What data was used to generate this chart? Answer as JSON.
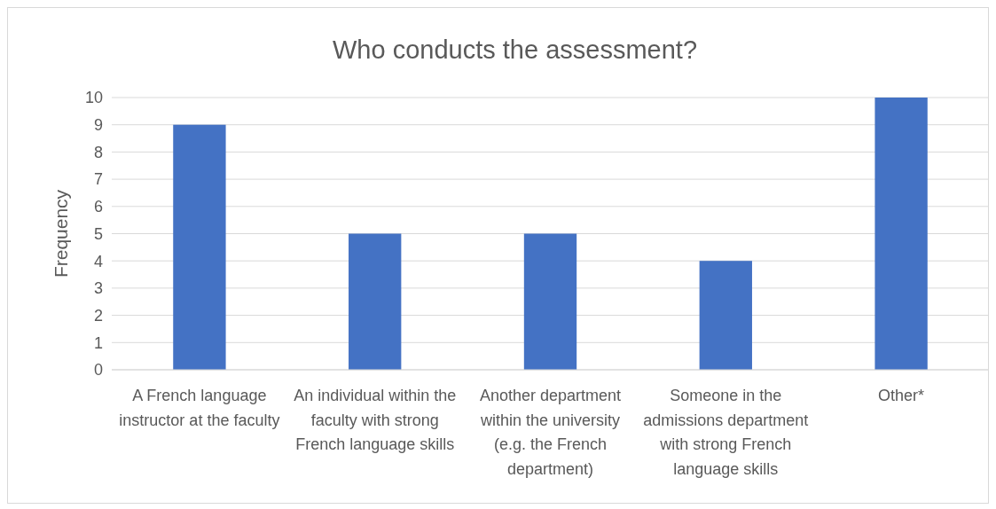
{
  "chart_data": {
    "type": "bar",
    "title": "Who conducts the assessment?",
    "ylabel": "Frequency",
    "categories": [
      "A French language instructor at the faculty",
      "An individual within the faculty with strong French language skills",
      "Another department within the university (e.g. the French department)",
      "Someone in the admissions department with strong French language skills",
      "Other*"
    ],
    "values": [
      9,
      5,
      5,
      4,
      10
    ],
    "color": "#4472c4",
    "ylim": [
      0,
      10
    ],
    "yticks": [
      0,
      1,
      2,
      3,
      4,
      5,
      6,
      7,
      8,
      9,
      10
    ],
    "grid": "y"
  }
}
